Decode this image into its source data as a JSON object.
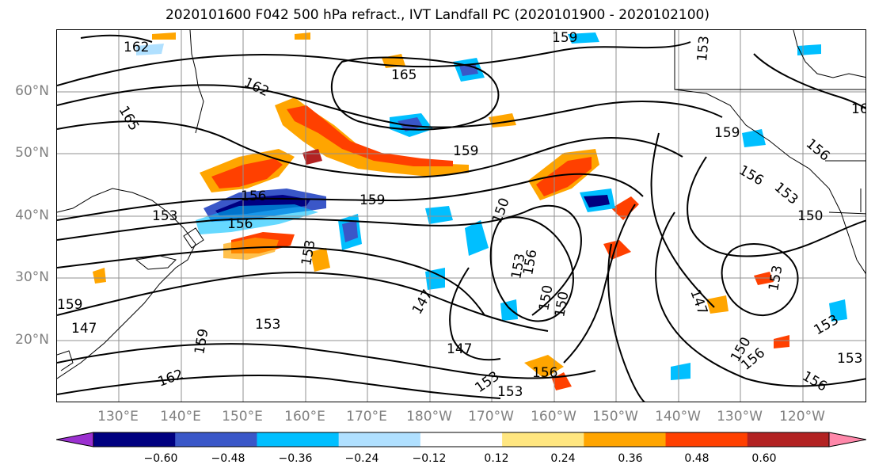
{
  "title": "2020101600 F042 500 hPa refract., IVT Landfall PC (2020101900 - 2020102100)",
  "lat_labels": [
    "60°N",
    "50°N",
    "40°N",
    "30°N",
    "20°N"
  ],
  "lon_labels": [
    "130°E",
    "140°E",
    "150°E",
    "160°E",
    "170°E",
    "180°W",
    "170°W",
    "160°W",
    "150°W",
    "140°W",
    "130°W",
    "120°W"
  ],
  "colorbar": {
    "ticks": [
      "−0.60",
      "−0.48",
      "−0.36",
      "−0.24",
      "−0.12",
      "0.12",
      "0.24",
      "0.36",
      "0.48",
      "0.60"
    ],
    "colors": [
      "#9b30d0",
      "#000080",
      "#3a57c8",
      "#00bfff",
      "#b0e0ff",
      "#ffffff",
      "#ffe680",
      "#ffa500",
      "#ff4000",
      "#b22222",
      "#ff88aa"
    ]
  },
  "contour_labels": [
    "162",
    "165",
    "162",
    "165",
    "159",
    "159",
    "159",
    "156",
    "153",
    "156",
    "153",
    "150",
    "150",
    "153",
    "156",
    "150",
    "147",
    "147",
    "153",
    "156",
    "159",
    "159",
    "147",
    "153",
    "162",
    "153",
    "150",
    "153",
    "156",
    "156",
    "153",
    "156",
    "153",
    "150",
    "147",
    "153",
    "159",
    "16",
    "156",
    "153"
  ],
  "colors": {
    "land_outline": "#000000",
    "grid": "#909090",
    "contour": "#000000"
  }
}
